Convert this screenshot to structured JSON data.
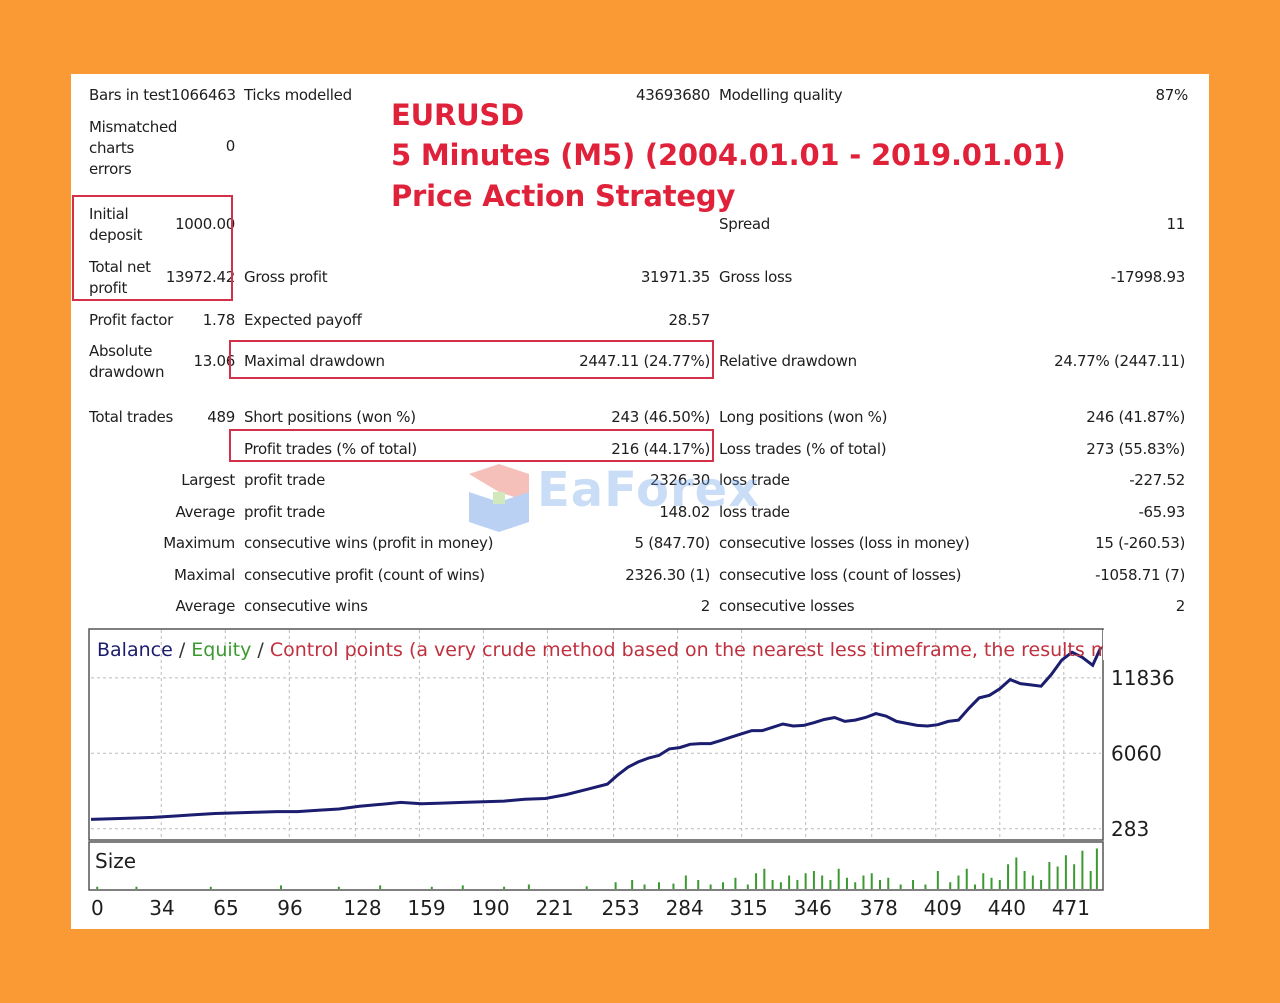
{
  "heading": {
    "line1": "EURUSD",
    "line2": "5 Minutes (M5)  (2004.01.01 - 2019.01.01)",
    "line3": "Price Action Strategy"
  },
  "watermark": {
    "text": "EaForex"
  },
  "stats": {
    "bars_in_test_label": "Bars in test",
    "bars_in_test_value": "1066463",
    "ticks_modelled_label": "Ticks modelled",
    "ticks_modelled_value": "43693680",
    "modelling_quality_label": "Modelling quality",
    "modelling_quality_value": "87%",
    "mismatched_label_1": "Mismatched",
    "mismatched_label_2": "charts",
    "mismatched_label_3": "errors",
    "mismatched_value": "0",
    "initial_deposit_label_1": "Initial",
    "initial_deposit_label_2": "deposit",
    "initial_deposit_value": "1000.00",
    "spread_label": "Spread",
    "spread_value": "11",
    "total_net_profit_label_1": "Total net",
    "total_net_profit_label_2": "profit",
    "total_net_profit_value": "13972.42",
    "gross_profit_label": "Gross profit",
    "gross_profit_value": "31971.35",
    "gross_loss_label": "Gross loss",
    "gross_loss_value": "-17998.93",
    "profit_factor_label": "Profit factor",
    "profit_factor_value": "1.78",
    "expected_payoff_label": "Expected payoff",
    "expected_payoff_value": "28.57",
    "absolute_drawdown_label_1": "Absolute",
    "absolute_drawdown_label_2": "drawdown",
    "absolute_drawdown_value": "13.06",
    "maximal_drawdown_label": "Maximal drawdown",
    "maximal_drawdown_value": "2447.11 (24.77%)",
    "relative_drawdown_label": "Relative drawdown",
    "relative_drawdown_value": "24.77% (2447.11)",
    "total_trades_label": "Total trades",
    "total_trades_value": "489",
    "short_positions_label": "Short positions (won %)",
    "short_positions_value": "243 (46.50%)",
    "long_positions_label": "Long positions (won %)",
    "long_positions_value": "246 (41.87%)",
    "profit_trades_label": "Profit trades (% of total)",
    "profit_trades_value": "216 (44.17%)",
    "loss_trades_label": "Loss trades (% of total)",
    "loss_trades_value": "273 (55.83%)",
    "largest_label": "Largest",
    "largest_profit_label": "profit trade",
    "largest_profit_value": "2326.30",
    "largest_loss_label": "loss trade",
    "largest_loss_value": "-227.52",
    "average_label": "Average",
    "average_profit_label": "profit trade",
    "average_profit_value": "148.02",
    "average_loss_label": "loss trade",
    "average_loss_value": "-65.93",
    "maximum_label": "Maximum",
    "max_cons_wins_label": "consecutive wins (profit in money)",
    "max_cons_wins_value": "5 (847.70)",
    "max_cons_losses_label": "consecutive losses (loss in money)",
    "max_cons_losses_value": "15 (-260.53)",
    "maximal_label": "Maximal",
    "maximal_cons_profit_label": "consecutive profit (count of wins)",
    "maximal_cons_profit_value": "2326.30 (1)",
    "maximal_cons_loss_label": "consecutive loss (count of losses)",
    "maximal_cons_loss_value": "-1058.71 (7)",
    "average2_label": "Average",
    "avg_cons_wins_label": "consecutive wins",
    "avg_cons_wins_value": "2",
    "avg_cons_losses_label": "consecutive losses",
    "avg_cons_losses_value": "2"
  },
  "colors": {
    "highlight_box": "#d3304a",
    "heading": "#e0213a",
    "balance_line": "#1b1d6e",
    "size_bars": "#3a9a30",
    "legend_balance": "#1b1d6e",
    "legend_equity": "#3a9a30",
    "legend_control": "#c0303e"
  },
  "chart_data": [
    {
      "type": "line",
      "legend": {
        "balance": "Balance",
        "sep1": " / ",
        "equity": "Equity",
        "sep2": " / ",
        "control": "Control points (a very crude method based on the nearest less timeframe, the results must not be consi"
      },
      "yticks": [
        283,
        6060,
        11836
      ],
      "ylim": [
        -500,
        15500
      ],
      "xlim": [
        0,
        489
      ],
      "xticks": [
        0,
        34,
        65,
        96,
        128,
        159,
        190,
        221,
        253,
        284,
        315,
        346,
        378,
        409,
        440,
        471
      ],
      "grid": true,
      "series": [
        {
          "name": "Balance",
          "x": [
            0,
            10,
            20,
            30,
            40,
            50,
            60,
            70,
            80,
            90,
            100,
            110,
            120,
            130,
            140,
            150,
            160,
            170,
            180,
            190,
            200,
            210,
            220,
            230,
            240,
            250,
            255,
            260,
            265,
            270,
            275,
            280,
            285,
            290,
            295,
            300,
            305,
            310,
            315,
            320,
            325,
            330,
            335,
            340,
            345,
            350,
            355,
            360,
            365,
            370,
            375,
            380,
            385,
            390,
            395,
            400,
            405,
            410,
            415,
            420,
            425,
            430,
            435,
            440,
            445,
            450,
            455,
            460,
            465,
            470,
            475,
            480,
            485,
            489
          ],
          "values": [
            1000,
            1050,
            1100,
            1150,
            1250,
            1350,
            1450,
            1500,
            1550,
            1600,
            1600,
            1700,
            1800,
            2000,
            2150,
            2300,
            2200,
            2250,
            2300,
            2350,
            2400,
            2550,
            2600,
            2900,
            3300,
            3700,
            4400,
            5000,
            5400,
            5700,
            5900,
            6400,
            6500,
            6750,
            6800,
            6800,
            7050,
            7300,
            7550,
            7800,
            7800,
            8050,
            8300,
            8150,
            8200,
            8400,
            8650,
            8800,
            8500,
            8600,
            8800,
            9100,
            8900,
            8500,
            8350,
            8200,
            8150,
            8250,
            8500,
            8600,
            9500,
            10300,
            10500,
            11000,
            11700,
            11400,
            11300,
            11200,
            12100,
            13200,
            13800,
            13400,
            12800,
            14200
          ]
        }
      ]
    },
    {
      "type": "bar",
      "title": "Size",
      "xlim": [
        0,
        489
      ],
      "values_note": "",
      "x": [
        3,
        22,
        58,
        92,
        120,
        140,
        165,
        180,
        200,
        212,
        240,
        254,
        262,
        268,
        275,
        282,
        288,
        294,
        300,
        306,
        312,
        318,
        322,
        326,
        330,
        334,
        338,
        342,
        346,
        350,
        354,
        358,
        362,
        366,
        370,
        374,
        378,
        382,
        386,
        392,
        398,
        404,
        410,
        416,
        420,
        424,
        428,
        432,
        436,
        440,
        444,
        448,
        452,
        456,
        460,
        464,
        468,
        472,
        476,
        480,
        484,
        487
      ],
      "values": [
        0.05,
        0.05,
        0.05,
        0.08,
        0.05,
        0.08,
        0.05,
        0.08,
        0.05,
        0.1,
        0.06,
        0.15,
        0.2,
        0.1,
        0.15,
        0.12,
        0.3,
        0.2,
        0.1,
        0.15,
        0.25,
        0.1,
        0.35,
        0.45,
        0.2,
        0.15,
        0.3,
        0.2,
        0.35,
        0.4,
        0.3,
        0.2,
        0.45,
        0.25,
        0.15,
        0.3,
        0.35,
        0.2,
        0.25,
        0.1,
        0.2,
        0.1,
        0.4,
        0.15,
        0.3,
        0.45,
        0.1,
        0.35,
        0.25,
        0.2,
        0.55,
        0.7,
        0.4,
        0.3,
        0.2,
        0.6,
        0.5,
        0.75,
        0.55,
        0.85,
        0.4,
        0.9
      ]
    }
  ]
}
